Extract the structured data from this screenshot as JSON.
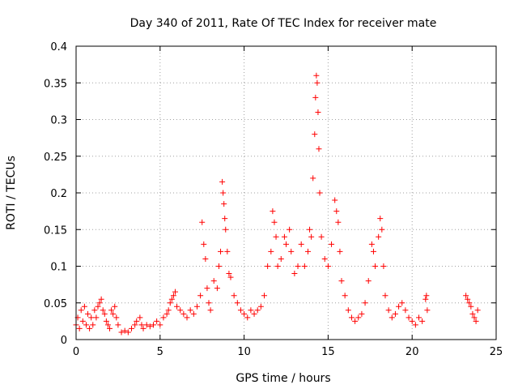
{
  "chart_data": {
    "type": "scatter",
    "title": "Day 340 of 2011, Rate Of TEC Index for receiver mate",
    "xlabel": "GPS time / hours",
    "ylabel": "ROTI / TECUs",
    "xlim": [
      0,
      25
    ],
    "ylim": [
      0,
      0.4
    ],
    "xticks": [
      0,
      5,
      10,
      15,
      20,
      25
    ],
    "xtick_labels": [
      "0",
      "5",
      "10",
      "15",
      "20",
      "25"
    ],
    "yticks": [
      0,
      0.05,
      0.1,
      0.15,
      0.2,
      0.25,
      0.3,
      0.35,
      0.4
    ],
    "ytick_labels": [
      "0",
      "0.05",
      "0.1",
      "0.15",
      "0.2",
      "0.25",
      "0.3",
      "0.35",
      "0.4"
    ],
    "grid": true,
    "marker": "+",
    "color": "#ff0000",
    "series": [
      {
        "values": [
          [
            0.0,
            0.02
          ],
          [
            0.1,
            0.03
          ],
          [
            0.2,
            0.015
          ],
          [
            0.3,
            0.04
          ],
          [
            0.4,
            0.025
          ],
          [
            0.5,
            0.045
          ],
          [
            0.6,
            0.02
          ],
          [
            0.7,
            0.035
          ],
          [
            0.8,
            0.015
          ],
          [
            0.9,
            0.03
          ],
          [
            1.0,
            0.02
          ],
          [
            1.1,
            0.04
          ],
          [
            1.2,
            0.03
          ],
          [
            1.3,
            0.045
          ],
          [
            1.4,
            0.05
          ],
          [
            1.5,
            0.055
          ],
          [
            1.6,
            0.04
          ],
          [
            1.7,
            0.035
          ],
          [
            1.8,
            0.025
          ],
          [
            1.9,
            0.02
          ],
          [
            2.0,
            0.015
          ],
          [
            2.1,
            0.04
          ],
          [
            2.2,
            0.035
          ],
          [
            2.3,
            0.045
          ],
          [
            2.4,
            0.03
          ],
          [
            2.5,
            0.02
          ],
          [
            2.7,
            0.01
          ],
          [
            2.9,
            0.012
          ],
          [
            3.1,
            0.01
          ],
          [
            3.3,
            0.015
          ],
          [
            3.5,
            0.02
          ],
          [
            3.6,
            0.025
          ],
          [
            3.8,
            0.03
          ],
          [
            3.9,
            0.02
          ],
          [
            4.0,
            0.015
          ],
          [
            4.2,
            0.02
          ],
          [
            4.4,
            0.018
          ],
          [
            4.6,
            0.02
          ],
          [
            4.8,
            0.025
          ],
          [
            5.0,
            0.02
          ],
          [
            5.2,
            0.03
          ],
          [
            5.4,
            0.035
          ],
          [
            5.5,
            0.04
          ],
          [
            5.6,
            0.05
          ],
          [
            5.7,
            0.055
          ],
          [
            5.8,
            0.06
          ],
          [
            5.9,
            0.065
          ],
          [
            6.0,
            0.045
          ],
          [
            6.2,
            0.04
          ],
          [
            6.4,
            0.035
          ],
          [
            6.6,
            0.03
          ],
          [
            6.8,
            0.04
          ],
          [
            7.0,
            0.035
          ],
          [
            7.2,
            0.045
          ],
          [
            7.4,
            0.06
          ],
          [
            7.5,
            0.16
          ],
          [
            7.6,
            0.13
          ],
          [
            7.7,
            0.11
          ],
          [
            7.8,
            0.07
          ],
          [
            7.9,
            0.05
          ],
          [
            8.0,
            0.04
          ],
          [
            8.2,
            0.08
          ],
          [
            8.4,
            0.07
          ],
          [
            8.5,
            0.1
          ],
          [
            8.6,
            0.12
          ],
          [
            8.7,
            0.215
          ],
          [
            8.75,
            0.2
          ],
          [
            8.8,
            0.185
          ],
          [
            8.85,
            0.165
          ],
          [
            8.9,
            0.15
          ],
          [
            9.0,
            0.12
          ],
          [
            9.1,
            0.09
          ],
          [
            9.2,
            0.085
          ],
          [
            9.4,
            0.06
          ],
          [
            9.6,
            0.05
          ],
          [
            9.8,
            0.04
          ],
          [
            10.0,
            0.035
          ],
          [
            10.2,
            0.03
          ],
          [
            10.4,
            0.04
          ],
          [
            10.6,
            0.035
          ],
          [
            10.8,
            0.04
          ],
          [
            11.0,
            0.045
          ],
          [
            11.2,
            0.06
          ],
          [
            11.4,
            0.1
          ],
          [
            11.6,
            0.12
          ],
          [
            11.7,
            0.175
          ],
          [
            11.8,
            0.16
          ],
          [
            11.9,
            0.14
          ],
          [
            12.0,
            0.1
          ],
          [
            12.2,
            0.11
          ],
          [
            12.4,
            0.14
          ],
          [
            12.5,
            0.13
          ],
          [
            12.7,
            0.15
          ],
          [
            12.8,
            0.12
          ],
          [
            13.0,
            0.09
          ],
          [
            13.2,
            0.1
          ],
          [
            13.4,
            0.13
          ],
          [
            13.6,
            0.1
          ],
          [
            13.8,
            0.12
          ],
          [
            13.9,
            0.15
          ],
          [
            14.0,
            0.14
          ],
          [
            14.1,
            0.22
          ],
          [
            14.2,
            0.28
          ],
          [
            14.25,
            0.33
          ],
          [
            14.3,
            0.36
          ],
          [
            14.35,
            0.35
          ],
          [
            14.4,
            0.31
          ],
          [
            14.45,
            0.26
          ],
          [
            14.5,
            0.2
          ],
          [
            14.6,
            0.14
          ],
          [
            14.8,
            0.11
          ],
          [
            15.0,
            0.1
          ],
          [
            15.2,
            0.13
          ],
          [
            15.4,
            0.19
          ],
          [
            15.5,
            0.175
          ],
          [
            15.6,
            0.16
          ],
          [
            15.7,
            0.12
          ],
          [
            15.8,
            0.08
          ],
          [
            16.0,
            0.06
          ],
          [
            16.2,
            0.04
          ],
          [
            16.4,
            0.03
          ],
          [
            16.6,
            0.025
          ],
          [
            16.8,
            0.03
          ],
          [
            17.0,
            0.035
          ],
          [
            17.2,
            0.05
          ],
          [
            17.4,
            0.08
          ],
          [
            17.6,
            0.13
          ],
          [
            17.7,
            0.12
          ],
          [
            17.8,
            0.1
          ],
          [
            18.0,
            0.14
          ],
          [
            18.1,
            0.165
          ],
          [
            18.2,
            0.15
          ],
          [
            18.3,
            0.1
          ],
          [
            18.4,
            0.06
          ],
          [
            18.6,
            0.04
          ],
          [
            18.8,
            0.03
          ],
          [
            19.0,
            0.035
          ],
          [
            19.2,
            0.045
          ],
          [
            19.4,
            0.05
          ],
          [
            19.6,
            0.04
          ],
          [
            19.8,
            0.03
          ],
          [
            20.0,
            0.025
          ],
          [
            20.2,
            0.02
          ],
          [
            20.4,
            0.03
          ],
          [
            20.6,
            0.025
          ],
          [
            20.8,
            0.055
          ],
          [
            20.85,
            0.06
          ],
          [
            20.9,
            0.04
          ],
          [
            23.2,
            0.06
          ],
          [
            23.3,
            0.055
          ],
          [
            23.4,
            0.05
          ],
          [
            23.5,
            0.045
          ],
          [
            23.6,
            0.035
          ],
          [
            23.7,
            0.03
          ],
          [
            23.8,
            0.025
          ],
          [
            23.9,
            0.04
          ]
        ]
      }
    ]
  }
}
